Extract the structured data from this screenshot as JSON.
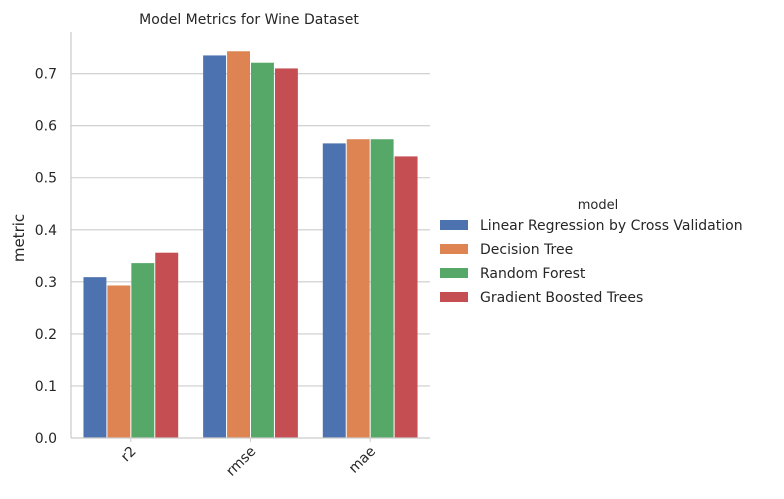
{
  "chart_data": {
    "type": "bar",
    "title": "Model Metrics for Wine Dataset",
    "xlabel": "",
    "ylabel": "metric",
    "categories": [
      "r2",
      "rmse",
      "mae"
    ],
    "series": [
      {
        "name": "Linear Regression by Cross Validation",
        "color": "#4c72b0",
        "values": [
          0.309,
          0.735,
          0.566
        ]
      },
      {
        "name": "Decision Tree",
        "color": "#dd8452",
        "values": [
          0.293,
          0.743,
          0.574
        ]
      },
      {
        "name": "Random Forest",
        "color": "#55a868",
        "values": [
          0.336,
          0.721,
          0.574
        ]
      },
      {
        "name": "Gradient Boosted Trees",
        "color": "#c44e52",
        "values": [
          0.356,
          0.71,
          0.541
        ]
      }
    ],
    "ylim": [
      0,
      0.78
    ],
    "yticks": [
      "0.0",
      "0.1",
      "0.2",
      "0.3",
      "0.4",
      "0.5",
      "0.6",
      "0.7"
    ],
    "grid": true,
    "legend": {
      "title": "model",
      "placement": "right"
    }
  }
}
